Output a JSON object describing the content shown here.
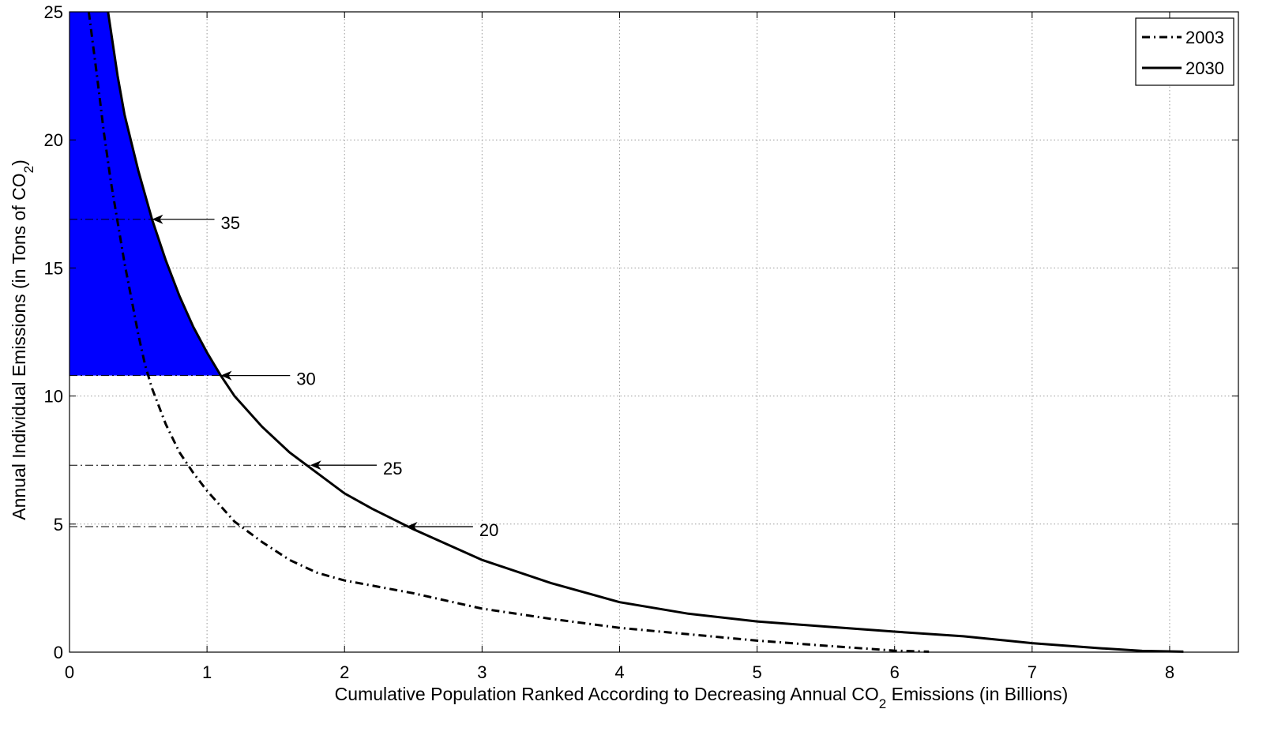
{
  "chart_data": {
    "type": "line",
    "xlabel": {
      "prefix": "Cumulative Population Ranked According to Decreasing Annual CO",
      "subscript": "2",
      "suffix": " Emissions (in Billions)"
    },
    "ylabel": {
      "prefix": "Annual Individual Emissions (in Tons of CO",
      "subscript": "2",
      "suffix": ")"
    },
    "xlim": [
      0,
      8.5
    ],
    "ylim": [
      0,
      25
    ],
    "x_ticks": [
      0,
      1,
      2,
      3,
      4,
      5,
      6,
      7,
      8
    ],
    "y_ticks": [
      0,
      5,
      10,
      15,
      20,
      25
    ],
    "grid": true,
    "legend_position": "top-right",
    "fill_color": "#0000ff",
    "series": [
      {
        "name": "2003",
        "style": "dash-dot",
        "color": "#000000",
        "x": [
          0.14,
          0.2,
          0.25,
          0.3,
          0.35,
          0.4,
          0.45,
          0.5,
          0.55,
          0.6,
          0.7,
          0.8,
          0.9,
          1.0,
          1.2,
          1.4,
          1.6,
          1.8,
          2.0,
          2.5,
          3.0,
          3.5,
          4.0,
          4.5,
          5.0,
          5.5,
          6.0,
          6.25
        ],
        "y": [
          25,
          22.5,
          20.3,
          18.4,
          16.8,
          15.2,
          13.8,
          12.4,
          11.2,
          10.3,
          8.9,
          7.8,
          7.0,
          6.3,
          5.1,
          4.3,
          3.6,
          3.1,
          2.8,
          2.3,
          1.7,
          1.3,
          0.95,
          0.7,
          0.45,
          0.25,
          0.06,
          0.02
        ]
      },
      {
        "name": "2030",
        "style": "solid",
        "color": "#000000",
        "x": [
          0.28,
          0.35,
          0.4,
          0.5,
          0.6,
          0.7,
          0.8,
          0.9,
          1.0,
          1.1,
          1.2,
          1.4,
          1.6,
          1.8,
          2.0,
          2.2,
          2.5,
          3.0,
          3.5,
          4.0,
          4.5,
          5.0,
          5.5,
          6.0,
          6.5,
          7.0,
          7.5,
          7.8,
          8.1
        ],
        "y": [
          25,
          22.5,
          21.0,
          18.8,
          16.9,
          15.3,
          13.9,
          12.7,
          11.7,
          10.8,
          10.0,
          8.8,
          7.8,
          7.0,
          6.2,
          5.6,
          4.8,
          3.6,
          2.7,
          1.95,
          1.5,
          1.2,
          1.0,
          0.8,
          0.62,
          0.35,
          0.15,
          0.05,
          0.02
        ]
      }
    ],
    "shaded_region": {
      "y_floor": 10.8,
      "x_right": 1.1
    },
    "reference_lines": [
      {
        "y": 16.9,
        "x_end": 0.6
      },
      {
        "y": 10.8,
        "x_end": 1.1
      },
      {
        "y": 7.3,
        "x_end": 1.75
      },
      {
        "y": 4.9,
        "x_end": 2.45
      }
    ],
    "annotations": [
      {
        "text": "35",
        "x": 0.6,
        "y": 16.9,
        "text_x": 1.1
      },
      {
        "text": "30",
        "x": 1.1,
        "y": 10.8,
        "text_x": 1.65
      },
      {
        "text": "25",
        "x": 1.75,
        "y": 7.3,
        "text_x": 2.28
      },
      {
        "text": "20",
        "x": 2.45,
        "y": 4.9,
        "text_x": 2.98
      }
    ]
  }
}
